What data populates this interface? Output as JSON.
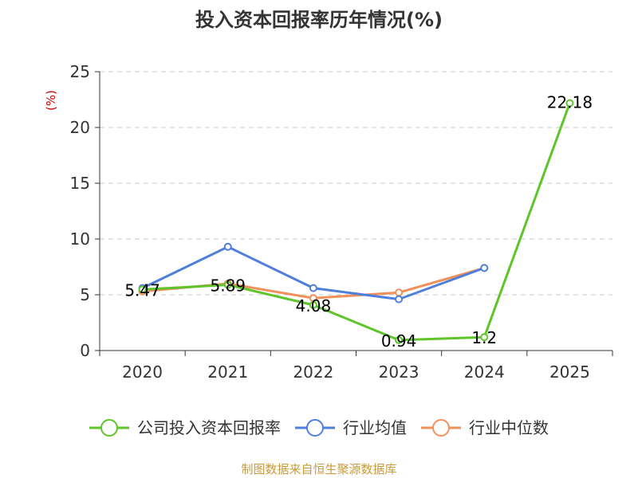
{
  "chart_data": {
    "type": "line",
    "title": "投入资本回报率历年情况(%)",
    "ylabel": "(%)",
    "xlabel": "",
    "categories": [
      "2020",
      "2021",
      "2022",
      "2023",
      "2024",
      "2025"
    ],
    "ylim": [
      0,
      25
    ],
    "yticks": [
      0,
      5,
      10,
      15,
      20,
      25
    ],
    "grid": true,
    "legend_position": "bottom",
    "series": [
      {
        "name": "公司投入资本回报率",
        "color": "#5ec429",
        "values": [
          5.47,
          5.89,
          4.08,
          0.94,
          1.2,
          22.18
        ],
        "labels": [
          "5.47",
          "5.89",
          "4.08",
          "0.94",
          "1.2",
          "22.18"
        ]
      },
      {
        "name": "行业均值",
        "color": "#4f7fdc",
        "values": [
          5.6,
          9.3,
          5.6,
          4.6,
          7.4,
          null
        ]
      },
      {
        "name": "行业中位数",
        "color": "#f0905a",
        "values": [
          5.3,
          6.0,
          4.7,
          5.2,
          7.4,
          null
        ]
      }
    ],
    "source": "制图数据来自恒生聚源数据库"
  }
}
